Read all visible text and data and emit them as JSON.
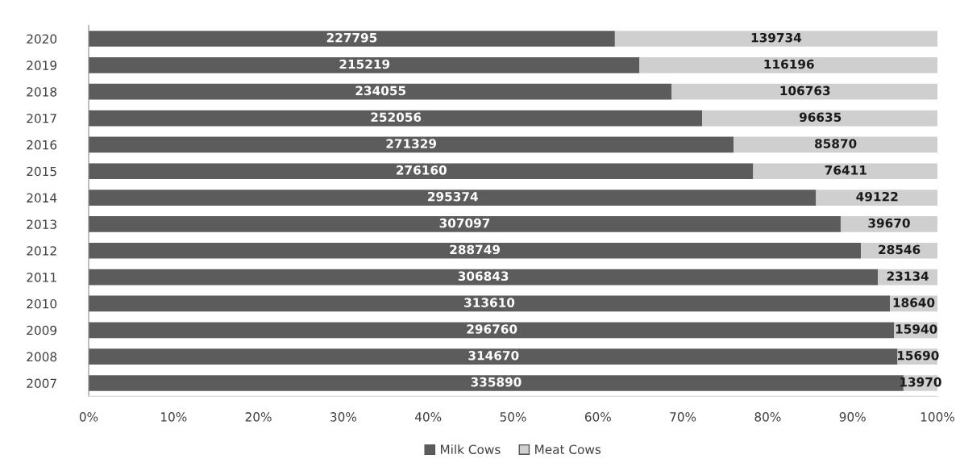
{
  "chart_data": {
    "type": "bar",
    "orientation": "horizontal",
    "stacked": true,
    "categories": [
      "2020",
      "2019",
      "2018",
      "2017",
      "2016",
      "2015",
      "2014",
      "2013",
      "2012",
      "2011",
      "2010",
      "2009",
      "2008",
      "2007"
    ],
    "series": [
      {
        "name": "Milk Cows",
        "color": "#5c5c5c",
        "values": [
          62.0,
          64.9,
          68.7,
          72.3,
          76.0,
          78.3,
          85.7,
          88.6,
          91.0,
          93.0,
          94.4,
          94.9,
          95.3,
          96.0
        ]
      },
      {
        "name": "Meat Cows",
        "color": "#cfcfcf",
        "values": [
          38.0,
          35.1,
          31.3,
          27.7,
          24.0,
          21.7,
          14.3,
          11.4,
          9.0,
          7.0,
          5.6,
          5.1,
          4.7,
          4.0
        ]
      }
    ],
    "annotations": [
      {
        "text": "227795",
        "x": 31.0,
        "y": "2020"
      },
      {
        "text": "139734",
        "x": 81.0,
        "y": "2020"
      },
      {
        "text": "215219",
        "x": 32.5,
        "y": "2019"
      },
      {
        "text": "116196",
        "x": 82.5,
        "y": "2019"
      },
      {
        "text": "234055",
        "x": 34.4,
        "y": "2018"
      },
      {
        "text": "106763",
        "x": 84.4,
        "y": "2018"
      },
      {
        "text": "252056",
        "x": 36.2,
        "y": "2017"
      },
      {
        "text": "96635",
        "x": 86.2,
        "y": "2017"
      },
      {
        "text": "271329",
        "x": 38.0,
        "y": "2016"
      },
      {
        "text": "85870",
        "x": 88.0,
        "y": "2016"
      },
      {
        "text": "276160",
        "x": 39.2,
        "y": "2015"
      },
      {
        "text": "76411",
        "x": 89.2,
        "y": "2015"
      },
      {
        "text": "295374",
        "x": 42.9,
        "y": "2014"
      },
      {
        "text": "49122",
        "x": 92.9,
        "y": "2014"
      },
      {
        "text": "307097",
        "x": 44.3,
        "y": "2013"
      },
      {
        "text": "39670",
        "x": 94.3,
        "y": "2013"
      },
      {
        "text": "288749",
        "x": 45.5,
        "y": "2012"
      },
      {
        "text": "28546",
        "x": 95.5,
        "y": "2012"
      },
      {
        "text": "306843",
        "x": 46.5,
        "y": "2011"
      },
      {
        "text": "23134",
        "x": 96.5,
        "y": "2011"
      },
      {
        "text": "313610",
        "x": 47.2,
        "y": "2010"
      },
      {
        "text": "18640",
        "x": 97.2,
        "y": "2010"
      },
      {
        "text": "296760",
        "x": 47.5,
        "y": "2009"
      },
      {
        "text": "15940",
        "x": 97.5,
        "y": "2009"
      },
      {
        "text": "314670",
        "x": 47.7,
        "y": "2008"
      },
      {
        "text": "15690",
        "x": 97.7,
        "y": "2008"
      },
      {
        "text": "335890",
        "x": 48.0,
        "y": "2007"
      },
      {
        "text": "13970",
        "x": 98.0,
        "y": "2007"
      }
    ],
    "xlim": [
      0,
      100
    ],
    "xticks": [
      {
        "value": 0,
        "label": "0%"
      },
      {
        "value": 10,
        "label": "10%"
      },
      {
        "value": 20,
        "label": "20%"
      },
      {
        "value": 30,
        "label": "30%"
      },
      {
        "value": 40,
        "label": "40%"
      },
      {
        "value": 50,
        "label": "50%"
      },
      {
        "value": 60,
        "label": "60%"
      },
      {
        "value": 70,
        "label": "70%"
      },
      {
        "value": 80,
        "label": "80%"
      },
      {
        "value": 90,
        "label": "90%"
      },
      {
        "value": 100,
        "label": "100%"
      }
    ],
    "legend": "bottom",
    "grid": false
  }
}
